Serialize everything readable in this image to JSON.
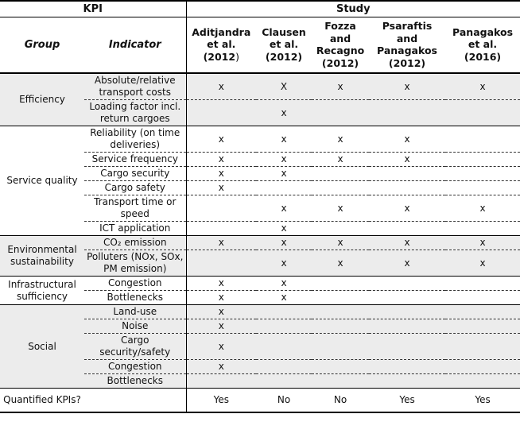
{
  "header": {
    "kpi_label": "KPI",
    "study_label": "Study",
    "group_label": "Group",
    "indicator_label": "Indicator",
    "studies": [
      {
        "lines": [
          "Aditjandra",
          "et al.",
          "(2012"
        ],
        "year_suffix": ")"
      },
      {
        "lines": [
          "Clausen",
          "et al.",
          "(2012)"
        ],
        "year_suffix": ""
      },
      {
        "lines": [
          "Fozza",
          "and",
          "Recagno",
          "(2012)"
        ],
        "year_suffix": ""
      },
      {
        "lines": [
          "Psaraftis",
          "and",
          "Panagakos",
          "(2012)"
        ],
        "year_suffix": ""
      },
      {
        "lines": [
          "Panagakos",
          "et al.",
          "(2016)"
        ],
        "year_suffix": ""
      }
    ]
  },
  "groups": [
    {
      "name": "Efficiency",
      "shaded": true,
      "rows": [
        {
          "indicator": "Absolute/relative transport costs",
          "marks": [
            "x",
            "X",
            "x",
            "x",
            "x"
          ]
        },
        {
          "indicator": "Loading factor incl. return cargoes",
          "marks": [
            "",
            "x",
            "",
            "",
            ""
          ]
        }
      ]
    },
    {
      "name": "Service quality",
      "shaded": false,
      "rows": [
        {
          "indicator": "Reliability (on time deliveries)",
          "marks": [
            "x",
            "x",
            "x",
            "x",
            ""
          ]
        },
        {
          "indicator": "Service frequency",
          "marks": [
            "x",
            "x",
            "x",
            "x",
            ""
          ]
        },
        {
          "indicator": "Cargo security",
          "marks": [
            "x",
            "x",
            "",
            "",
            ""
          ]
        },
        {
          "indicator": "Cargo safety",
          "marks": [
            "x",
            "",
            "",
            "",
            ""
          ]
        },
        {
          "indicator": "Transport time or speed",
          "marks": [
            "",
            "x",
            "x",
            "x",
            "x"
          ]
        },
        {
          "indicator": "ICT application",
          "marks": [
            "",
            "x",
            "",
            "",
            ""
          ]
        }
      ]
    },
    {
      "name": "Environmental sustainability",
      "shaded": true,
      "rows": [
        {
          "indicator": "CO₂ emission",
          "marks": [
            "x",
            "x",
            "x",
            "x",
            "x"
          ]
        },
        {
          "indicator": "Polluters (NOx, SOx, PM emission)",
          "marks": [
            "",
            "x",
            "x",
            "x",
            "x"
          ]
        }
      ]
    },
    {
      "name": "Infrastructural sufficiency",
      "shaded": false,
      "rows": [
        {
          "indicator": "Congestion",
          "marks": [
            "x",
            "x",
            "",
            "",
            ""
          ]
        },
        {
          "indicator": "Bottlenecks",
          "marks": [
            "x",
            "x",
            "",
            "",
            ""
          ]
        }
      ]
    },
    {
      "name": "Social",
      "shaded": true,
      "rows": [
        {
          "indicator": "Land-use",
          "marks": [
            "x",
            "",
            "",
            "",
            ""
          ]
        },
        {
          "indicator": "Noise",
          "marks": [
            "x",
            "",
            "",
            "",
            ""
          ]
        },
        {
          "indicator": "Cargo security/safety",
          "marks": [
            "x",
            "",
            "",
            "",
            ""
          ]
        },
        {
          "indicator": "Congestion",
          "marks": [
            "x",
            "",
            "",
            "",
            ""
          ]
        },
        {
          "indicator": "Bottlenecks",
          "marks": [
            "",
            "",
            "",
            "",
            ""
          ]
        }
      ]
    }
  ],
  "footer": {
    "label": "Quantified KPIs?",
    "values": [
      "Yes",
      "No",
      "No",
      "Yes",
      "Yes"
    ]
  }
}
